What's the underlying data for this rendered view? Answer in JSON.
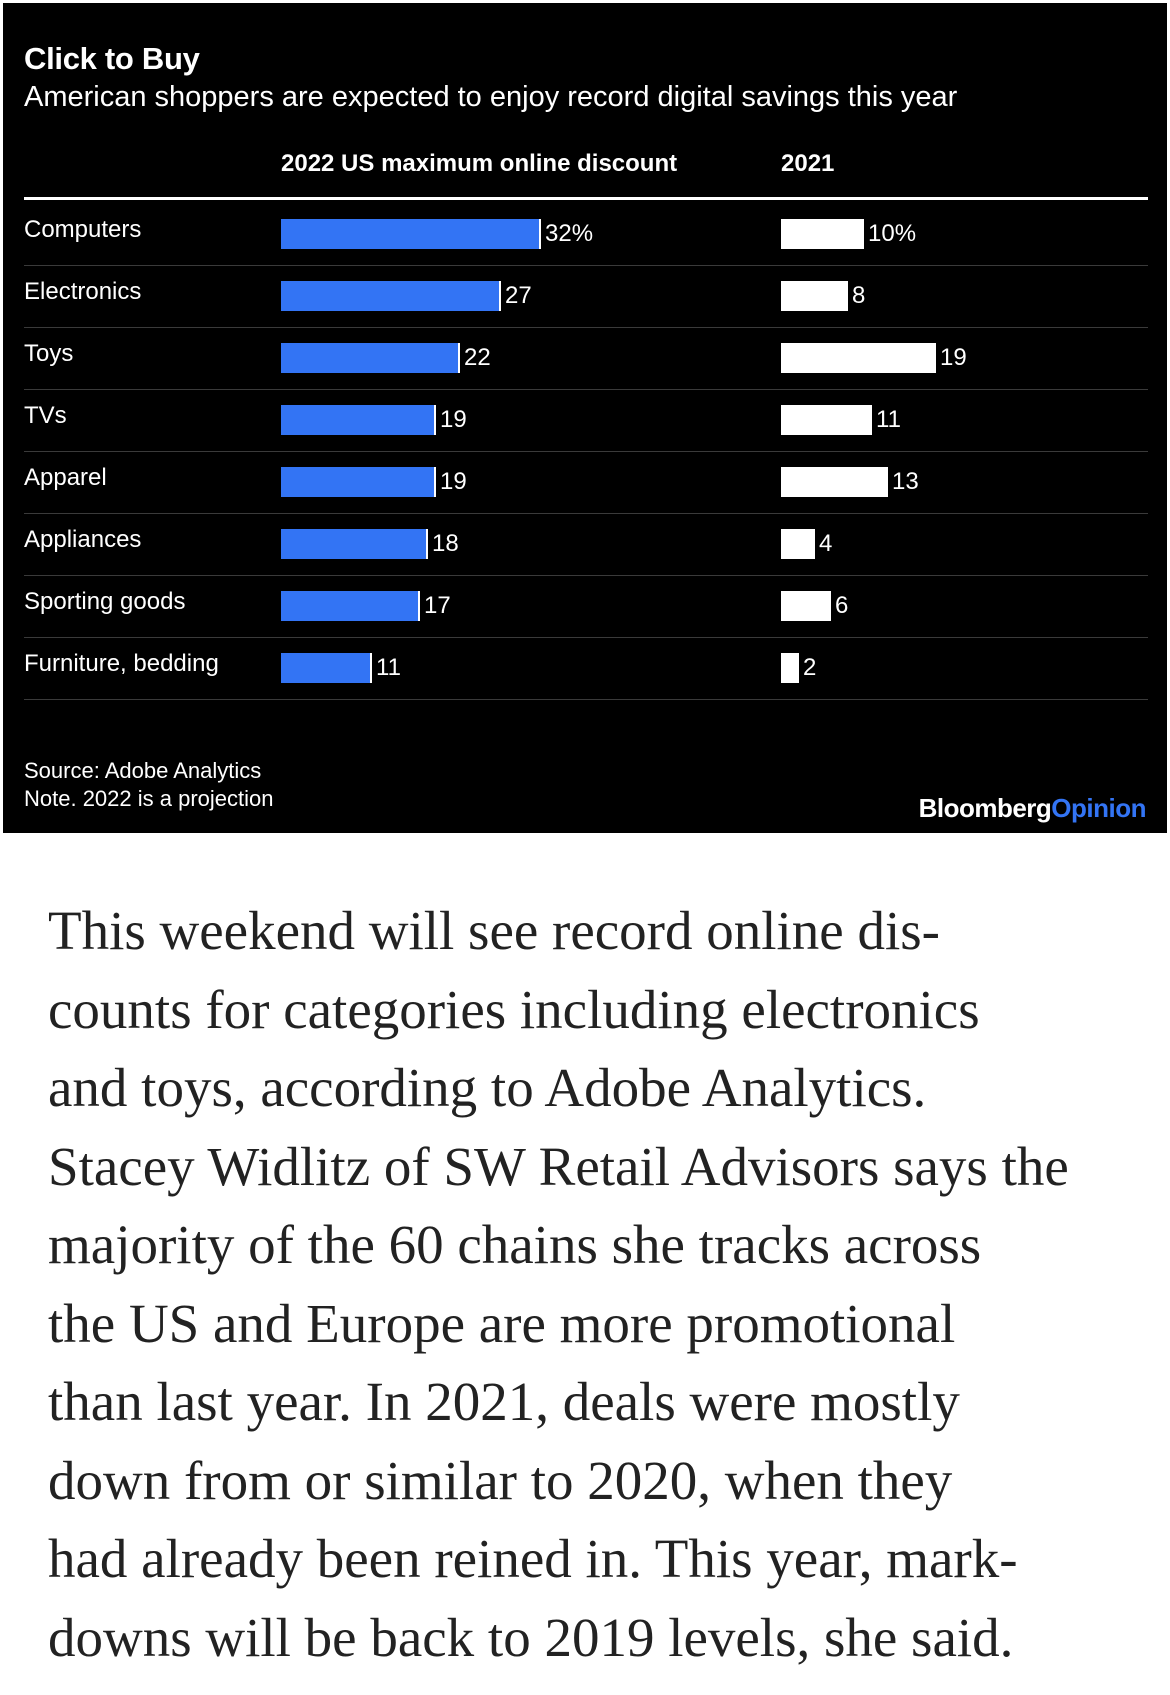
{
  "chart_data": {
    "type": "bar",
    "orientation": "horizontal",
    "title": "Click to Buy",
    "subtitle": "American shoppers are expected to enjoy record digital savings this year",
    "categories": [
      "Computers",
      "Electronics",
      "Toys",
      "TVs",
      "Apparel",
      "Appliances",
      "Sporting goods",
      "Furniture, bedding"
    ],
    "series": [
      {
        "name": "2022 US maximum online discount",
        "values": [
          32,
          27,
          22,
          19,
          19,
          18,
          17,
          11
        ],
        "labels": [
          "32%",
          "27",
          "22",
          "19",
          "19",
          "18",
          "17",
          "11"
        ],
        "color": "#3374f4"
      },
      {
        "name": "2021",
        "values": [
          10,
          8,
          19,
          11,
          13,
          4,
          6,
          2
        ],
        "labels": [
          "10%",
          "8",
          "19",
          "11",
          "13",
          "4",
          "6",
          "2"
        ],
        "color": "#ffffff"
      }
    ],
    "xlim": [
      0,
      32
    ],
    "legend": "column headers",
    "grid": false,
    "source": "Source: Adobe Analytics",
    "note": "Note. 2022 is a projection",
    "brand": {
      "primary": "Bloomberg",
      "secondary": "Opinion"
    }
  },
  "colors": {
    "background": "#000000",
    "accent": "#3374f4",
    "text": "#ffffff"
  },
  "article": {
    "lines": [
      "This weekend will see record online dis-",
      "counts for categories including electronics",
      "and toys, according to Adobe Analytics.",
      "Stacey Widlitz of SW Retail Advisors says the",
      "majority of the 60 chains she tracks across",
      "the US and Europe are more promotional",
      "than last year. In 2021, deals were mostly",
      "down from or similar to 2020, when they",
      "had already been reined in. This year, mark-",
      "downs will be back to 2019 levels, she said."
    ]
  }
}
